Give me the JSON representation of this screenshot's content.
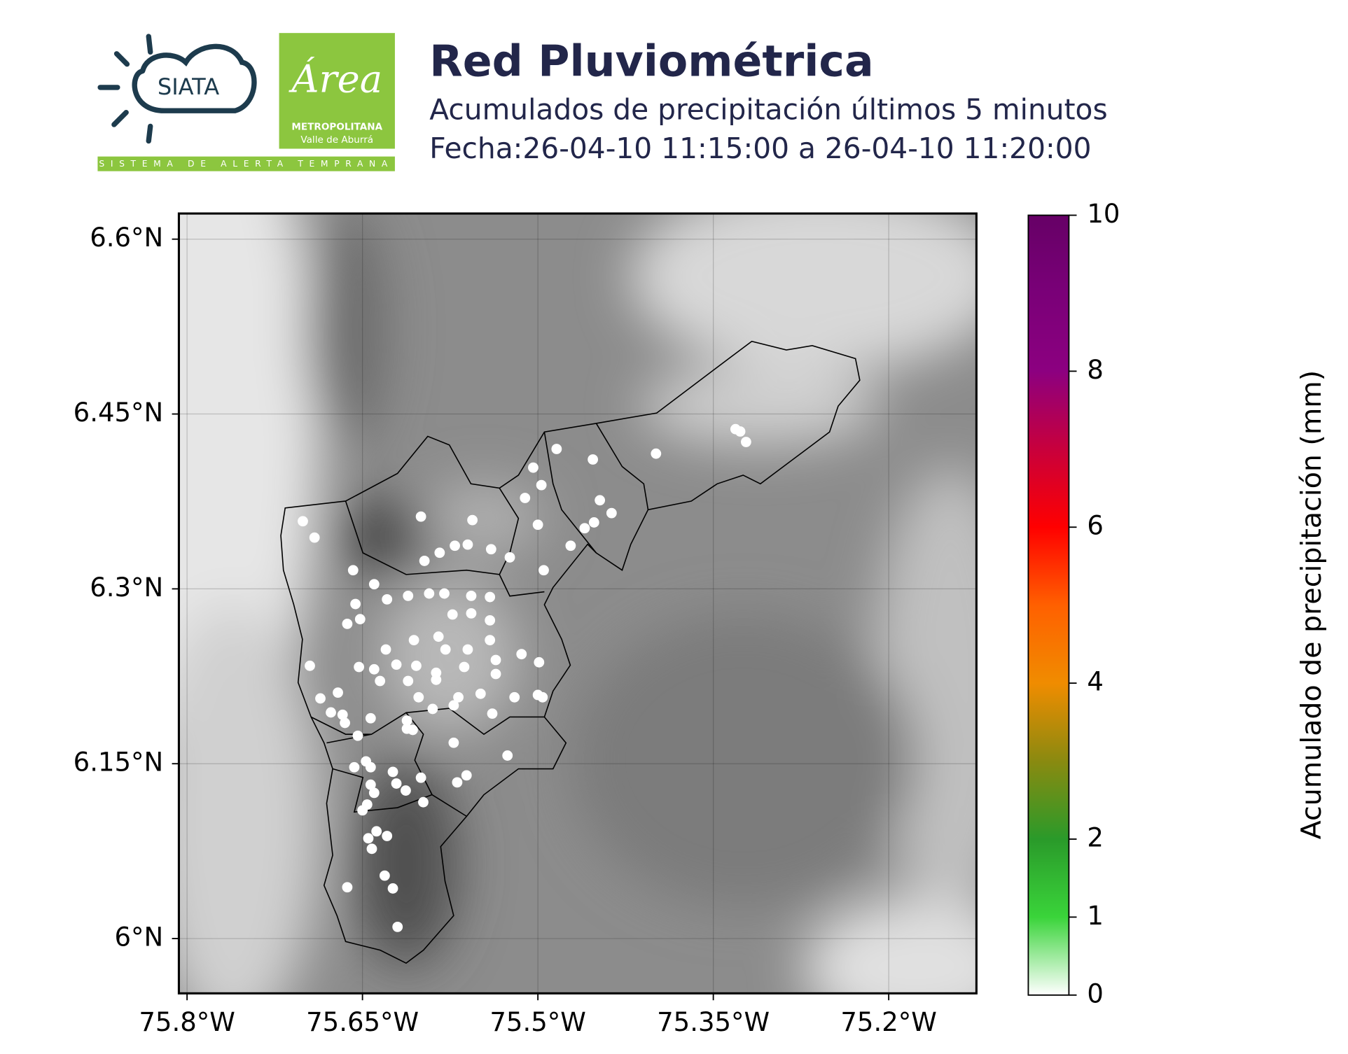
{
  "header": {
    "title": "Red Pluviométrica",
    "subtitle": "Acumulados de precipitación últimos 5 minutos",
    "date": "Fecha:26-04-10 11:15:00 a 26-04-10 11:20:00"
  },
  "logos": {
    "siata": "SIATA",
    "area": "Área",
    "area_line1": "METROPOLITANA",
    "area_line2": "Valle de Aburrá",
    "strip": "SISTEMA DE ALERTA TEMPRANA"
  },
  "chart_data": {
    "type": "map",
    "xlim": [
      -75.807,
      -75.125
    ],
    "ylim": [
      5.953,
      6.622
    ],
    "xticks": [
      {
        "value": -75.8,
        "label": "75.8°W"
      },
      {
        "value": -75.65,
        "label": "75.65°W"
      },
      {
        "value": -75.5,
        "label": "75.5°W"
      },
      {
        "value": -75.35,
        "label": "75.35°W"
      },
      {
        "value": -75.2,
        "label": "75.2°W"
      }
    ],
    "yticks": [
      {
        "value": 6.0,
        "label": "6°N"
      },
      {
        "value": 6.15,
        "label": "6.15°N"
      },
      {
        "value": 6.3,
        "label": "6.3°N"
      },
      {
        "value": 6.45,
        "label": "6.45°N"
      },
      {
        "value": 6.6,
        "label": "6.6°N"
      }
    ],
    "grid": true,
    "stations": {
      "color": "#ffffff",
      "x": [
        -75.701,
        -75.691,
        -75.6,
        -75.556,
        -75.484,
        -75.504,
        -75.497,
        -75.511,
        -75.453,
        -75.399,
        -75.331,
        -75.327,
        -75.322,
        -75.447,
        -75.437,
        -75.452,
        -75.46,
        -75.472,
        -75.5,
        -75.524,
        -75.495,
        -75.658,
        -75.64,
        -75.597,
        -75.584,
        -75.571,
        -75.56,
        -75.54,
        -75.629,
        -75.611,
        -75.593,
        -75.58,
        -75.557,
        -75.541,
        -75.656,
        -75.663,
        -75.652,
        -75.573,
        -75.557,
        -75.541,
        -75.63,
        -75.606,
        -75.585,
        -75.579,
        -75.56,
        -75.541,
        -75.536,
        -75.514,
        -75.499,
        -75.695,
        -75.653,
        -75.64,
        -75.621,
        -75.604,
        -75.587,
        -75.563,
        -75.635,
        -75.611,
        -75.587,
        -75.536,
        -75.671,
        -75.686,
        -75.602,
        -75.568,
        -75.549,
        -75.52,
        -75.5,
        -75.496,
        -75.677,
        -75.667,
        -75.643,
        -75.59,
        -75.572,
        -75.539,
        -75.612,
        -75.665,
        -75.612,
        -75.654,
        -75.607,
        -75.572,
        -75.526,
        -75.647,
        -75.657,
        -75.643,
        -75.624,
        -75.6,
        -75.561,
        -75.569,
        -75.643,
        -75.621,
        -75.613,
        -75.598,
        -75.64,
        -75.646,
        -75.65,
        -75.638,
        -75.645,
        -75.629,
        -75.642,
        -75.631,
        -75.663,
        -75.624,
        -75.62
      ],
      "y": [
        6.358,
        6.344,
        6.362,
        6.359,
        6.42,
        6.404,
        6.389,
        6.378,
        6.411,
        6.416,
        6.437,
        6.435,
        6.426,
        6.376,
        6.365,
        6.357,
        6.352,
        6.337,
        6.355,
        6.327,
        6.316,
        6.316,
        6.304,
        6.324,
        6.331,
        6.337,
        6.338,
        6.334,
        6.291,
        6.294,
        6.296,
        6.296,
        6.294,
        6.293,
        6.287,
        6.27,
        6.274,
        6.278,
        6.279,
        6.273,
        6.248,
        6.256,
        6.259,
        6.248,
        6.248,
        6.256,
        6.239,
        6.244,
        6.237,
        6.234,
        6.233,
        6.231,
        6.235,
        6.234,
        6.228,
        6.233,
        6.221,
        6.221,
        6.222,
        6.227,
        6.211,
        6.206,
        6.207,
        6.207,
        6.21,
        6.207,
        6.209,
        6.207,
        6.194,
        6.192,
        6.189,
        6.197,
        6.2,
        6.193,
        6.187,
        6.185,
        6.18,
        6.174,
        6.179,
        6.168,
        6.157,
        6.152,
        6.147,
        6.147,
        6.143,
        6.138,
        6.14,
        6.134,
        6.132,
        6.133,
        6.127,
        6.117,
        6.125,
        6.115,
        6.11,
        6.092,
        6.086,
        6.088,
        6.077,
        6.054,
        6.044,
        6.043,
        6.01
      ]
    },
    "colorbar": {
      "label": "Acumulado de precipitación (mm)",
      "lim": [
        0,
        10
      ],
      "ticks": [
        0,
        1,
        2,
        4,
        6,
        8,
        10
      ],
      "colors": [
        "#ffffff",
        "#3ad43a",
        "#2a9a2a",
        "#8a8a10",
        "#f08c00",
        "#ff6000",
        "#ff0000",
        "#c8003c",
        "#8c0080",
        "#7a0078",
        "#660066"
      ]
    }
  }
}
